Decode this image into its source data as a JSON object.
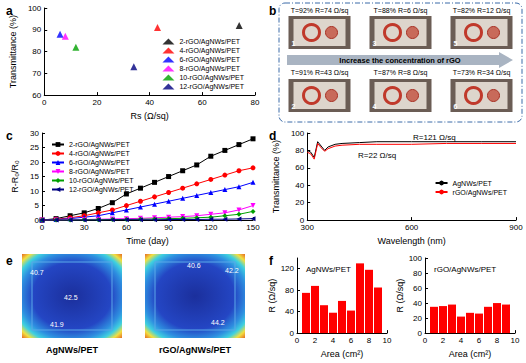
{
  "chart_data": [
    {
      "title": "a",
      "type": "scatter",
      "x_label": "Rs (Ω/sq)",
      "y_label": "Transmittance (%)",
      "xlim": [
        0,
        80
      ],
      "xticks": [
        0,
        20,
        40,
        60,
        80
      ],
      "ylim": [
        60,
        100
      ],
      "yticks": [
        60,
        70,
        80,
        90,
        100
      ],
      "grid": false,
      "legend": "lower right",
      "series": [
        {
          "name": "2-rGO/AgNWs/PET",
          "color": "#000000",
          "marker": "triangle",
          "x": [
            74
          ],
          "values": [
            92
          ]
        },
        {
          "name": "4-rGO/AgNWs/PET",
          "color": "#ff0000",
          "marker": "triangle",
          "x": [
            43
          ],
          "values": [
            91
          ]
        },
        {
          "name": "6-rGO/AgNWs/PET",
          "color": "#0000ff",
          "marker": "triangle",
          "x": [
            6
          ],
          "values": [
            88
          ]
        },
        {
          "name": "8-rGO/AgNWs/PET",
          "color": "#ff00ff",
          "marker": "triangle",
          "x": [
            8
          ],
          "values": [
            87
          ]
        },
        {
          "name": "10-rGO/AgNWs/PET",
          "color": "#00a000",
          "marker": "triangle",
          "x": [
            12
          ],
          "values": [
            82
          ]
        },
        {
          "name": "12-rGO/AgNWs/PET",
          "color": "#000080",
          "marker": "triangle",
          "x": [
            34
          ],
          "values": [
            73
          ]
        }
      ]
    },
    {
      "title": "b",
      "type": "photo_grid",
      "caption": "Increase the concentration of rGO",
      "items": [
        {
          "label": "1",
          "text": "T=92% R=74 Ω/sq"
        },
        {
          "label": "3",
          "text": "T=88% R=6 Ω/sq"
        },
        {
          "label": "5",
          "text": "T=82% R=12 Ω/sq"
        },
        {
          "label": "2",
          "text": "T=91% R=43 Ω/sq"
        },
        {
          "label": "4",
          "text": "T=87% R=8 Ω/sq"
        },
        {
          "label": "6",
          "text": "T=73% R=34 Ω/sq"
        }
      ]
    },
    {
      "title": "c",
      "type": "line",
      "x_label": "Time (day)",
      "y_label": "R-R₀/R₀",
      "xlim": [
        0,
        150
      ],
      "xticks": [
        0,
        30,
        60,
        90,
        120,
        150
      ],
      "ylim": [
        0,
        30
      ],
      "yticks": [
        0,
        5,
        10,
        15,
        20,
        25,
        30
      ],
      "grid": false,
      "legend": "upper left",
      "x": [
        0,
        10,
        20,
        30,
        40,
        50,
        60,
        70,
        80,
        90,
        100,
        110,
        120,
        130,
        140,
        150
      ],
      "series": [
        {
          "name": "2-rGO/AgNWs/PET",
          "color": "#000000",
          "marker": "square",
          "line_style": "solid",
          "values": [
            0,
            0.5,
            1.5,
            2.5,
            4,
            6,
            9,
            11,
            13,
            15,
            17,
            19,
            22,
            24,
            26,
            28
          ]
        },
        {
          "name": "4-rGO/AgNWs/PET",
          "color": "#ff0000",
          "marker": "circle",
          "line_style": "solid",
          "values": [
            0,
            0.3,
            0.8,
            1.5,
            2.5,
            3.5,
            5,
            6.5,
            8,
            9.5,
            11,
            12.5,
            14,
            15.5,
            17,
            18
          ]
        },
        {
          "name": "6-rGO/AgNWs/PET",
          "color": "#0000ff",
          "marker": "triangle",
          "line_style": "solid",
          "values": [
            0,
            0.2,
            0.5,
            1,
            1.5,
            2.5,
            3.5,
            4.5,
            5.5,
            6.5,
            7.5,
            8.5,
            9.5,
            10.5,
            11.5,
            13
          ]
        },
        {
          "name": "8-rGO/AgNWs/PET",
          "color": "#ff00ff",
          "marker": "triangle_down",
          "line_style": "solid",
          "values": [
            0,
            0,
            0.1,
            0.2,
            0.3,
            0.4,
            0.5,
            0.6,
            0.8,
            1,
            1.2,
            1.5,
            2,
            2.5,
            3.5,
            5
          ]
        },
        {
          "name": "10-rGO/AgNWs/PET",
          "color": "#00a000",
          "marker": "diamond",
          "line_style": "solid",
          "values": [
            0,
            0,
            0,
            0.1,
            0.1,
            0.2,
            0.2,
            0.3,
            0.4,
            0.5,
            0.6,
            0.8,
            1,
            1.5,
            2,
            3
          ]
        },
        {
          "name": "12-rGO/AgNWs/PET",
          "color": "#000080",
          "marker": "triangle_left",
          "line_style": "solid",
          "values": [
            0,
            0,
            0,
            0,
            0,
            0.1,
            0.1,
            0.1,
            0.1,
            0.2,
            0.2,
            0.2,
            0.3,
            0.3,
            0.4,
            0.5
          ]
        }
      ]
    },
    {
      "title": "d",
      "type": "line",
      "x_label": "Wavelength (nm)",
      "y_label": "Transmittance (%)",
      "xlim": [
        300,
        900
      ],
      "xticks": [
        300,
        600,
        900
      ],
      "ylim": [
        0,
        100
      ],
      "yticks": [
        0,
        20,
        40,
        60,
        80,
        100
      ],
      "grid": false,
      "legend": "right",
      "annotations": [
        "R=121 Ω/sq",
        "R=22 Ω/sq"
      ],
      "x": [
        300,
        310,
        320,
        330,
        340,
        350,
        360,
        380,
        400,
        450,
        500,
        600,
        700,
        800,
        900
      ],
      "series": [
        {
          "name": "AgNWs/PET",
          "color": "#000000",
          "marker": "none",
          "line_style": "solid",
          "values": [
            80,
            78,
            72,
            90,
            85,
            80,
            84,
            87,
            88,
            89,
            90,
            90,
            90,
            90,
            90
          ]
        },
        {
          "name": "rGO/AgNWs/PET",
          "color": "#ff0000",
          "marker": "none",
          "line_style": "solid",
          "values": [
            78,
            76,
            70,
            88,
            83,
            79,
            82,
            85,
            86,
            87,
            87,
            87,
            88,
            88,
            88
          ]
        }
      ]
    },
    {
      "title": "e",
      "type": "thermal_map",
      "items": [
        {
          "label": "AgNWs/PET",
          "readings": [
            40.7,
            42.5,
            41.9
          ]
        },
        {
          "label": "rGO/AgNWs/PET",
          "readings": [
            40.6,
            42.2,
            44.2
          ]
        }
      ]
    },
    {
      "title": "f",
      "subtitle": "AgNWs/PET",
      "type": "bar",
      "x_label": "Area (cm²)",
      "y_label": "R (Ω/sq)",
      "xlim": [
        0,
        10
      ],
      "xticks": [
        0,
        2,
        4,
        6,
        8,
        10
      ],
      "ylim": [
        0,
        140
      ],
      "yticks": [
        0,
        40,
        80,
        120
      ],
      "grid": false,
      "color": "#ff0000",
      "x": [
        1,
        2,
        3,
        4,
        5,
        6,
        7,
        8,
        9
      ],
      "values": [
        75,
        88,
        52,
        38,
        60,
        42,
        130,
        118,
        85
      ]
    },
    {
      "subtitle": "rGO/AgNWs/PET",
      "type": "bar",
      "x_label": "Area (cm²)",
      "y_label": "R (Ω/sq)",
      "xlim": [
        0,
        10
      ],
      "xticks": [
        0,
        2,
        4,
        6,
        8,
        10
      ],
      "ylim": [
        0,
        100
      ],
      "yticks": [
        0,
        20,
        40,
        60,
        80,
        100
      ],
      "grid": false,
      "color": "#ff0000",
      "x": [
        1,
        2,
        3,
        4,
        5,
        6,
        7,
        8,
        9
      ],
      "values": [
        35,
        36,
        38,
        22,
        27,
        26,
        35,
        40,
        38
      ]
    }
  ]
}
